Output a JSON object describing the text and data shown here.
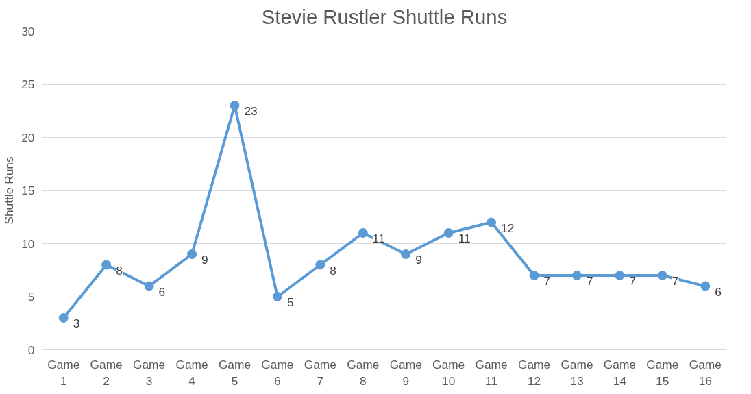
{
  "chart_data": {
    "type": "line",
    "title": "Stevie Rustler Shuttle Runs",
    "ylabel": "Shuttle Runs",
    "categories": [
      "Game 1",
      "Game 2",
      "Game 3",
      "Game 4",
      "Game 5",
      "Game 6",
      "Game 7",
      "Game 8",
      "Game 9",
      "Game 10",
      "Game 11",
      "Game 12",
      "Game 13",
      "Game 14",
      "Game 15",
      "Game 16"
    ],
    "series": [
      {
        "color": "#5b9bd5",
        "values": [
          3,
          8,
          6,
          9,
          23,
          5,
          8,
          11,
          9,
          11,
          12,
          7,
          7,
          7,
          7,
          6
        ]
      }
    ],
    "ylim": [
      0,
      30
    ],
    "yticks": [
      0,
      5,
      10,
      15,
      20,
      25,
      30
    ],
    "grid": "y",
    "marker": "circle",
    "line_style": "solid",
    "data_labels": true
  }
}
